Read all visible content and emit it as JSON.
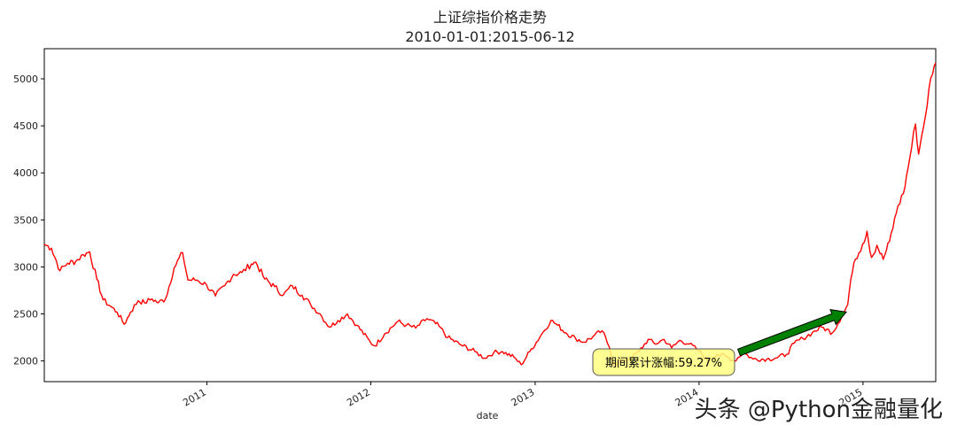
{
  "chart_data": {
    "type": "line",
    "title": "上证综指价格走势",
    "subtitle": "2010-01-01:2015-06-12",
    "xlabel": "date",
    "ylabel": "",
    "xlim": [
      "2010-01-04",
      "2015-06-12"
    ],
    "ylim": [
      1780,
      5320
    ],
    "yticks": [
      2000,
      2500,
      3000,
      3500,
      4000,
      4500,
      5000
    ],
    "xticks": [
      {
        "date": "2011-01-01",
        "label": "2011"
      },
      {
        "date": "2012-01-01",
        "label": "2012"
      },
      {
        "date": "2013-01-01",
        "label": "2013"
      },
      {
        "date": "2014-01-01",
        "label": "2014"
      },
      {
        "date": "2015-01-01",
        "label": "2015"
      }
    ],
    "grid": false,
    "line_color": "#ff0000",
    "series": [
      {
        "values": [
          [
            "2010-01-04",
            3240
          ],
          [
            "2010-01-20",
            3200
          ],
          [
            "2010-02-08",
            2960
          ],
          [
            "2010-02-25",
            3040
          ],
          [
            "2010-03-15",
            3060
          ],
          [
            "2010-04-01",
            3130
          ],
          [
            "2010-04-15",
            3160
          ],
          [
            "2010-05-01",
            2870
          ],
          [
            "2010-05-15",
            2650
          ],
          [
            "2010-06-01",
            2580
          ],
          [
            "2010-06-15",
            2520
          ],
          [
            "2010-07-01",
            2390
          ],
          [
            "2010-07-15",
            2520
          ],
          [
            "2010-08-01",
            2640
          ],
          [
            "2010-08-15",
            2620
          ],
          [
            "2010-09-01",
            2660
          ],
          [
            "2010-09-15",
            2620
          ],
          [
            "2010-10-01",
            2660
          ],
          [
            "2010-10-20",
            2990
          ],
          [
            "2010-11-08",
            3150
          ],
          [
            "2010-11-20",
            2860
          ],
          [
            "2010-12-10",
            2860
          ],
          [
            "2010-12-31",
            2810
          ],
          [
            "2011-01-20",
            2690
          ],
          [
            "2011-02-10",
            2800
          ],
          [
            "2011-03-01",
            2920
          ],
          [
            "2011-03-20",
            2940
          ],
          [
            "2011-04-10",
            3030
          ],
          [
            "2011-04-20",
            3050
          ],
          [
            "2011-05-10",
            2870
          ],
          [
            "2011-06-01",
            2790
          ],
          [
            "2011-06-20",
            2700
          ],
          [
            "2011-07-10",
            2800
          ],
          [
            "2011-08-01",
            2700
          ],
          [
            "2011-08-20",
            2600
          ],
          [
            "2011-09-10",
            2500
          ],
          [
            "2011-10-01",
            2360
          ],
          [
            "2011-10-20",
            2430
          ],
          [
            "2011-11-10",
            2500
          ],
          [
            "2011-12-01",
            2380
          ],
          [
            "2011-12-31",
            2200
          ],
          [
            "2012-01-10",
            2160
          ],
          [
            "2012-02-01",
            2290
          ],
          [
            "2012-03-01",
            2420
          ],
          [
            "2012-03-20",
            2380
          ],
          [
            "2012-04-10",
            2350
          ],
          [
            "2012-05-05",
            2450
          ],
          [
            "2012-06-01",
            2370
          ],
          [
            "2012-06-20",
            2250
          ],
          [
            "2012-07-20",
            2170
          ],
          [
            "2012-08-20",
            2100
          ],
          [
            "2012-09-10",
            2030
          ],
          [
            "2012-10-01",
            2090
          ],
          [
            "2012-10-20",
            2100
          ],
          [
            "2012-11-15",
            2040
          ],
          [
            "2012-12-01",
            1960
          ],
          [
            "2012-12-20",
            2100
          ],
          [
            "2013-01-15",
            2280
          ],
          [
            "2013-02-05",
            2430
          ],
          [
            "2013-02-20",
            2380
          ],
          [
            "2013-03-10",
            2300
          ],
          [
            "2013-04-01",
            2240
          ],
          [
            "2013-04-20",
            2200
          ],
          [
            "2013-05-10",
            2260
          ],
          [
            "2013-05-30",
            2320
          ],
          [
            "2013-06-15",
            2150
          ],
          [
            "2013-06-26",
            1950
          ],
          [
            "2013-07-15",
            2010
          ],
          [
            "2013-08-01",
            2030
          ],
          [
            "2013-08-20",
            2100
          ],
          [
            "2013-09-10",
            2230
          ],
          [
            "2013-09-25",
            2180
          ],
          [
            "2013-10-15",
            2230
          ],
          [
            "2013-11-01",
            2140
          ],
          [
            "2013-11-20",
            2220
          ],
          [
            "2013-12-10",
            2180
          ],
          [
            "2013-12-31",
            2110
          ],
          [
            "2014-01-20",
            2000
          ],
          [
            "2014-02-10",
            2070
          ],
          [
            "2014-03-01",
            2050
          ],
          [
            "2014-03-20",
            2000
          ],
          [
            "2014-04-10",
            2090
          ],
          [
            "2014-05-01",
            2020
          ],
          [
            "2014-06-01",
            2020
          ],
          [
            "2014-06-20",
            2030
          ],
          [
            "2014-07-15",
            2070
          ],
          [
            "2014-08-01",
            2190
          ],
          [
            "2014-08-20",
            2240
          ],
          [
            "2014-09-10",
            2300
          ],
          [
            "2014-10-01",
            2360
          ],
          [
            "2014-10-25",
            2300
          ],
          [
            "2014-11-15",
            2480
          ],
          [
            "2014-11-28",
            2600
          ],
          [
            "2014-12-05",
            2870
          ],
          [
            "2014-12-15",
            3080
          ],
          [
            "2014-12-31",
            3240
          ],
          [
            "2015-01-10",
            3380
          ],
          [
            "2015-01-20",
            3100
          ],
          [
            "2015-02-01",
            3230
          ],
          [
            "2015-02-15",
            3080
          ],
          [
            "2015-03-01",
            3270
          ],
          [
            "2015-03-20",
            3650
          ],
          [
            "2015-04-01",
            3780
          ],
          [
            "2015-04-15",
            4150
          ],
          [
            "2015-04-28",
            4520
          ],
          [
            "2015-05-05",
            4200
          ],
          [
            "2015-05-12",
            4400
          ],
          [
            "2015-05-20",
            4600
          ],
          [
            "2015-05-28",
            4900
          ],
          [
            "2015-06-05",
            5050
          ],
          [
            "2015-06-12",
            5170
          ]
        ]
      }
    ],
    "annotation": {
      "text": "期间累计涨幅:59.27%",
      "box_color": "#ffff80",
      "arrow_color": "#008000",
      "point": [
        "2014-11-25",
        2520
      ]
    }
  },
  "watermark": "头条 @Python金融量化"
}
